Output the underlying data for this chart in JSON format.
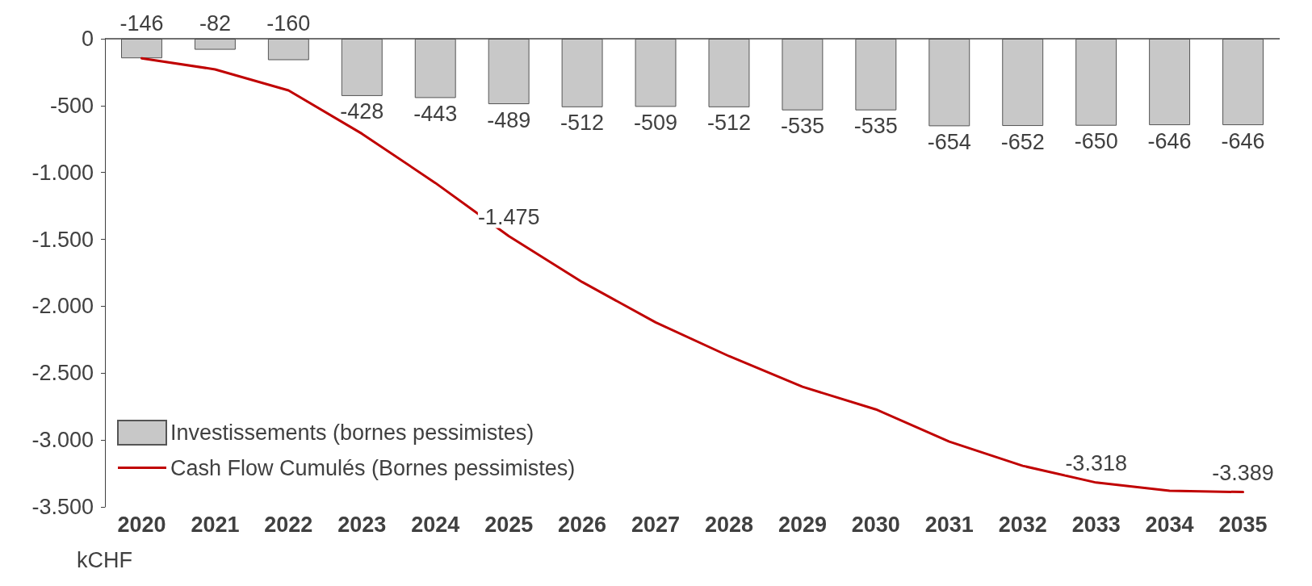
{
  "chart_data": {
    "type": "bar",
    "categories": [
      "2020",
      "2021",
      "2022",
      "2023",
      "2024",
      "2025",
      "2026",
      "2027",
      "2028",
      "2029",
      "2030",
      "2031",
      "2032",
      "2033",
      "2034",
      "2035"
    ],
    "series": [
      {
        "name": "Investissements (bornes pessimistes)",
        "color": "#c8c8c8",
        "values": [
          -146,
          -82,
          -160,
          -428,
          -443,
          -489,
          -512,
          -509,
          -512,
          -535,
          -535,
          -654,
          -652,
          -650,
          -646,
          -646
        ],
        "data_labels": true
      },
      {
        "name": "Cash Flow Cumulés (Bornes pessimistes)",
        "type": "line",
        "color": "#c00000",
        "values": [
          -146,
          -229,
          -386,
          -710,
          -1078,
          -1475,
          -1819,
          -2120,
          -2373,
          -2602,
          -2771,
          -3012,
          -3193,
          -3318,
          -3380,
          -3389
        ],
        "value_labels": [
          null,
          null,
          null,
          null,
          null,
          "-1.475",
          null,
          null,
          null,
          null,
          null,
          null,
          null,
          "-3.318",
          null,
          "-3.389"
        ]
      }
    ],
    "ylim": [
      -3500,
      0
    ],
    "yticks": [
      {
        "value": -3500,
        "label": "-3.500"
      },
      {
        "value": -3000,
        "label": "-3.000"
      },
      {
        "value": -2500,
        "label": "-2.500"
      },
      {
        "value": -2000,
        "label": "-2.000"
      },
      {
        "value": -1500,
        "label": "-1.500"
      },
      {
        "value": -1000,
        "label": "-1.000"
      },
      {
        "value": -500,
        "label": "-500"
      },
      0
    ],
    "annotations": [
      "kCHF"
    ],
    "legend": "bottom left",
    "grid": false,
    "marker": "none",
    "line_style": "solid"
  }
}
